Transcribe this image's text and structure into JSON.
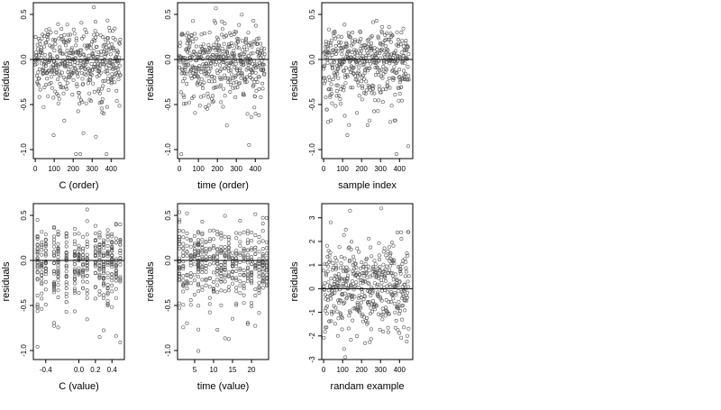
{
  "chart_data": [
    {
      "type": "scatter",
      "xlabel": "C (order)",
      "ylabel": "residuals",
      "xlim": [
        -10,
        470
      ],
      "ylim": [
        -1.1,
        0.63
      ],
      "xticks": [
        0,
        100,
        200,
        300,
        400
      ],
      "xtick_labels": [
        "0",
        "100",
        "200",
        "300",
        "400"
      ],
      "yticks": [
        -1.0,
        -0.5,
        0.0,
        0.5
      ],
      "ytick_labels": [
        "-1.0",
        "-0.5",
        "0.0",
        "0.5"
      ],
      "hline": 0,
      "n_points": 450,
      "x_range": [
        0,
        450
      ],
      "y_range": [
        -1.05,
        0.6
      ],
      "point_style": "open circle",
      "grid": false
    },
    {
      "type": "scatter",
      "xlabel": "time (order)",
      "ylabel": "residuals",
      "xlim": [
        -10,
        470
      ],
      "ylim": [
        -1.1,
        0.63
      ],
      "xticks": [
        0,
        100,
        200,
        300,
        400
      ],
      "xtick_labels": [
        "0",
        "100",
        "200",
        "300",
        "400"
      ],
      "yticks": [
        -1.0,
        -0.5,
        0.0,
        0.5
      ],
      "ytick_labels": [
        "-1.0",
        "-0.5",
        "0.0",
        "0.5"
      ],
      "hline": 0,
      "n_points": 450,
      "x_range": [
        0,
        450
      ],
      "y_range": [
        -1.05,
        0.6
      ],
      "point_style": "open circle",
      "grid": false
    },
    {
      "type": "scatter",
      "xlabel": "sample index",
      "ylabel": "residuals",
      "xlim": [
        -10,
        470
      ],
      "ylim": [
        -1.1,
        0.63
      ],
      "xticks": [
        0,
        100,
        200,
        300,
        400
      ],
      "xtick_labels": [
        "0",
        "100",
        "200",
        "300",
        "400"
      ],
      "yticks": [
        -1.0,
        -0.5,
        0.0,
        0.5
      ],
      "ytick_labels": [
        "-1.0",
        "-0.5",
        "0.0",
        "0.5"
      ],
      "hline": 0,
      "n_points": 450,
      "x_range": [
        0,
        450
      ],
      "y_range": [
        -1.05,
        0.6
      ],
      "point_style": "open circle",
      "grid": false
    },
    {
      "type": "scatter",
      "xlabel": "C (value)",
      "ylabel": "residuals",
      "xlim": [
        -0.55,
        0.55
      ],
      "ylim": [
        -1.1,
        0.63
      ],
      "xticks": [
        -0.4,
        0.0,
        0.2,
        0.4
      ],
      "xtick_labels": [
        "-0.4",
        "0.0",
        "0.2",
        "0.4"
      ],
      "yticks": [
        -1.0,
        -0.5,
        0.0,
        0.5
      ],
      "ytick_labels": [
        "-1.0",
        "-0.5",
        "0.0",
        "0.5"
      ],
      "hline": 0,
      "n_points": 450,
      "x_values": [
        -0.5,
        -0.45,
        -0.4,
        -0.3,
        -0.25,
        -0.15,
        -0.05,
        0.0,
        0.05,
        0.1,
        0.2,
        0.25,
        0.3,
        0.35,
        0.4,
        0.45,
        0.5
      ],
      "y_range": [
        -1.05,
        0.6
      ],
      "point_style": "open circle",
      "grid": false
    },
    {
      "type": "scatter",
      "xlabel": "time (value)",
      "ylabel": "residuals",
      "xlim": [
        0.5,
        24.5
      ],
      "ylim": [
        -1.1,
        0.63
      ],
      "xticks": [
        5,
        10,
        15,
        20
      ],
      "xtick_labels": [
        "5",
        "10",
        "15",
        "20"
      ],
      "yticks": [
        -1.0,
        -0.5,
        0.0,
        0.5
      ],
      "ytick_labels": [
        "-1.0",
        "-0.5",
        "0.0",
        "0.5"
      ],
      "hline": 0,
      "n_points": 450,
      "x_range": [
        1,
        24
      ],
      "x_integer": true,
      "y_range": [
        -1.05,
        0.6
      ],
      "point_style": "open circle",
      "grid": false
    },
    {
      "type": "scatter",
      "xlabel": "randam example",
      "ylabel": "residuals",
      "xlim": [
        -10,
        470
      ],
      "ylim": [
        -3.0,
        3.6
      ],
      "xticks": [
        0,
        100,
        200,
        300,
        400
      ],
      "xtick_labels": [
        "0",
        "100",
        "200",
        "300",
        "400"
      ],
      "yticks": [
        -3,
        -2,
        -1,
        0,
        1,
        2,
        3
      ],
      "ytick_labels": [
        "-3",
        "-2",
        "-1",
        "0",
        "1",
        "2",
        "3"
      ],
      "hline": 0,
      "n_points": 450,
      "x_range": [
        0,
        450
      ],
      "y_range": [
        -2.9,
        3.4
      ],
      "point_style": "open circle",
      "grid": false
    }
  ]
}
